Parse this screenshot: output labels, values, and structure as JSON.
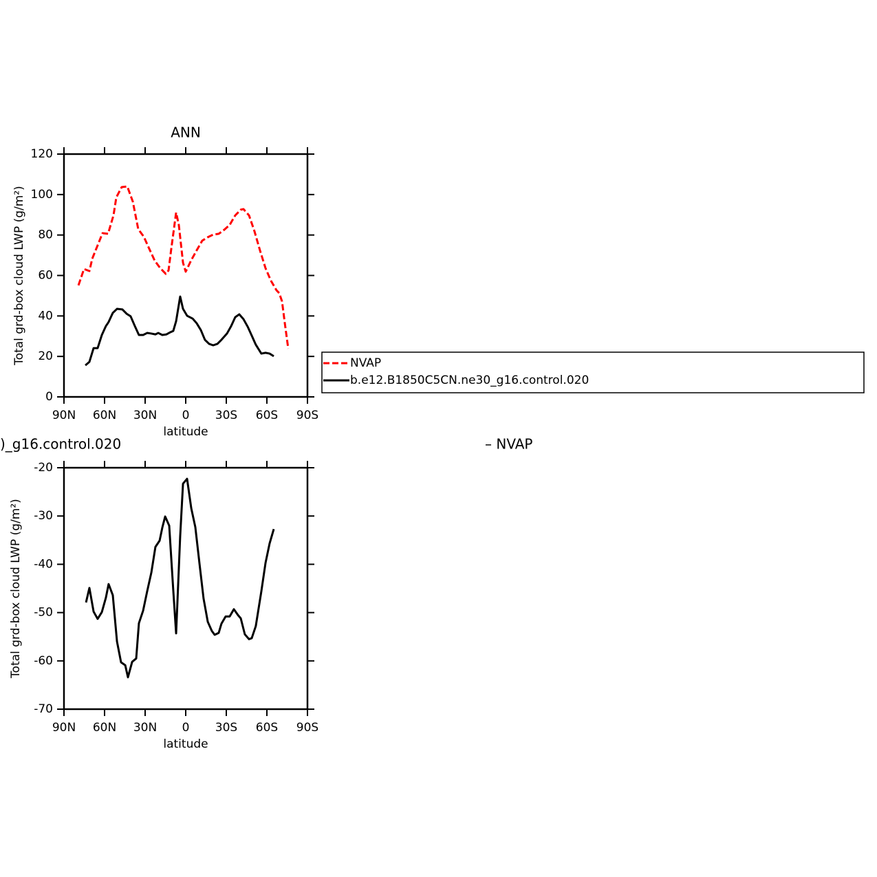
{
  "chart_data": [
    {
      "type": "line",
      "title": "ANN",
      "xlabel": "latitude",
      "ylabel": "Total grd-box cloud LWP (g/m²)",
      "xlim": [
        90,
        -90
      ],
      "ylim": [
        0,
        120
      ],
      "xticks": [
        {
          "value": 90,
          "label": "90N"
        },
        {
          "value": 60,
          "label": "60N"
        },
        {
          "value": 30,
          "label": "30N"
        },
        0,
        {
          "value": -30,
          "label": "30S"
        },
        {
          "value": -60,
          "label": "60S"
        },
        {
          "value": -90,
          "label": "90S"
        }
      ],
      "yticks": [
        0,
        20,
        40,
        60,
        80,
        100,
        120
      ],
      "legend": "right",
      "series": [
        {
          "name": "NVAP",
          "color": "#ff0000",
          "line_style": "dashed",
          "x": [
            79.3,
            75.2,
            71.2,
            69.1,
            65.6,
            61.5,
            57.4,
            53.4,
            51.3,
            47.3,
            43.2,
            39.1,
            35.1,
            31.0,
            26.9,
            22.9,
            18.8,
            14.7,
            12.7,
            10.7,
            7.1,
            5.1,
            2.0,
            0,
            -4.1,
            -8.1,
            -12.2,
            -16.3,
            -20.3,
            -24.4,
            -28.5,
            -32.5,
            -36.6,
            -40.7,
            -42.7,
            -46.8,
            -50.8,
            -54.9,
            -59.0,
            -63.0,
            -67.1,
            -69.1,
            -71.2,
            -73.2,
            -75.8
          ],
          "values": [
            55.1,
            63.2,
            62.2,
            68.3,
            74.1,
            80.9,
            80.6,
            89.7,
            98.6,
            103.7,
            104.0,
            96.5,
            82.9,
            79.2,
            73.1,
            67.3,
            63.6,
            60.8,
            62.5,
            73.1,
            91.1,
            85.0,
            66.3,
            61.9,
            67.6,
            72.4,
            77.2,
            78.9,
            80.2,
            80.6,
            82.6,
            85.0,
            89.7,
            92.5,
            92.8,
            89.7,
            81.9,
            72.4,
            63.6,
            57.4,
            52.7,
            51.3,
            47.2,
            36.7,
            23.8
          ]
        },
        {
          "name": "b.e12.B1850C5CN.ne30_g16.control.020",
          "color": "#000000",
          "line_style": "solid",
          "x": [
            74.2,
            71.2,
            68.1,
            65.1,
            62.0,
            59.0,
            57.0,
            53.9,
            50.8,
            46.8,
            43.7,
            40.7,
            37.6,
            34.6,
            31.5,
            28.5,
            25.4,
            22.4,
            20.3,
            17.3,
            14.2,
            11.2,
            9.2,
            7.1,
            4.1,
            2.0,
            -1.0,
            -5.1,
            -8.1,
            -11.2,
            -14.2,
            -17.3,
            -20.3,
            -23.4,
            -26.4,
            -30.5,
            -33.6,
            -36.6,
            -39.6,
            -42.7,
            -45.8,
            -48.8,
            -51.8,
            -55.9,
            -59.0,
            -62.0,
            -65.1
          ],
          "values": [
            15.6,
            17.3,
            24.1,
            24.1,
            30.6,
            35.0,
            37.0,
            41.5,
            43.5,
            43.2,
            41.1,
            39.8,
            35.0,
            30.6,
            30.6,
            31.6,
            31.3,
            30.9,
            31.6,
            30.6,
            30.9,
            32.0,
            32.6,
            37.4,
            49.6,
            43.5,
            40.1,
            38.7,
            36.4,
            33.0,
            28.2,
            26.2,
            25.5,
            26.2,
            28.2,
            31.3,
            35.0,
            39.4,
            40.8,
            38.4,
            34.7,
            30.3,
            25.8,
            21.4,
            21.8,
            21.4,
            20.1
          ]
        }
      ]
    },
    {
      "type": "line",
      "title": [
        ")_g16.control.020",
        "– NVAP"
      ],
      "xlabel": "latitude",
      "ylabel": "Total grd-box cloud LWP (g/m²)",
      "xlim": [
        90,
        -90
      ],
      "ylim": [
        -70,
        -20
      ],
      "xticks": [
        {
          "value": 90,
          "label": "90N"
        },
        {
          "value": 60,
          "label": "60N"
        },
        {
          "value": 30,
          "label": "30N"
        },
        0,
        {
          "value": -30,
          "label": "30S"
        },
        {
          "value": -60,
          "label": "60S"
        },
        {
          "value": -90,
          "label": "90S"
        }
      ],
      "yticks": [
        -70,
        -60,
        -50,
        -40,
        -30,
        -20
      ],
      "series": [
        {
          "color": "#000000",
          "line_style": "solid",
          "x": [
            73.7,
            71.2,
            68.1,
            65.1,
            62.0,
            59.0,
            57.0,
            53.9,
            50.8,
            47.8,
            44.7,
            42.7,
            39.6,
            36.6,
            34.6,
            31.5,
            28.5,
            25.4,
            22.4,
            19.3,
            17.3,
            15.2,
            12.2,
            9.2,
            7.1,
            4.1,
            2.0,
            -1.0,
            -4.1,
            -7.1,
            -10.2,
            -13.2,
            -16.3,
            -19.3,
            -21.4,
            -24.4,
            -26.4,
            -29.5,
            -32.5,
            -35.6,
            -38.6,
            -40.7,
            -43.7,
            -46.8,
            -48.8,
            -51.8,
            -55.9,
            -59.0,
            -62.0,
            -65.1
          ],
          "values": [
            -47.9,
            -44.9,
            -49.8,
            -51.3,
            -49.9,
            -46.9,
            -44.1,
            -46.4,
            -56.0,
            -60.3,
            -60.9,
            -63.4,
            -60.2,
            -59.5,
            -52.2,
            -49.6,
            -45.6,
            -41.7,
            -36.4,
            -35.1,
            -32.4,
            -30.1,
            -32.0,
            -45.4,
            -54.3,
            -34.2,
            -23.3,
            -22.3,
            -28.4,
            -32.3,
            -39.9,
            -47.1,
            -51.9,
            -53.8,
            -54.6,
            -54.2,
            -52.3,
            -50.8,
            -50.8,
            -49.3,
            -50.5,
            -51.2,
            -54.5,
            -55.5,
            -55.3,
            -52.8,
            -45.6,
            -39.7,
            -35.7,
            -32.7
          ]
        }
      ]
    }
  ]
}
